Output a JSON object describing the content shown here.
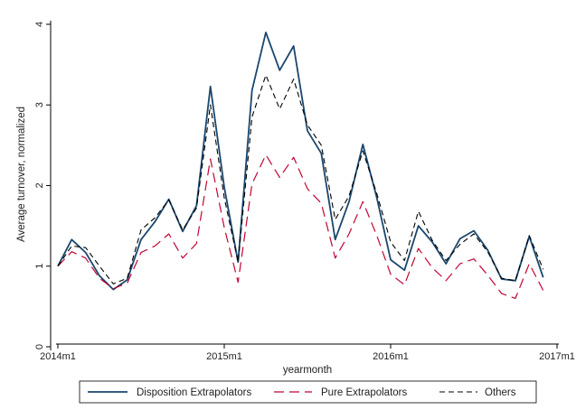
{
  "chart_data": {
    "type": "line",
    "title": "",
    "xlabel": "yearmonth",
    "ylabel": "Average turnover, normalized",
    "x_ticks": [
      "2014m1",
      "2015m1",
      "2016m1",
      "2017m1"
    ],
    "x_tick_index": [
      0,
      12,
      24,
      36
    ],
    "y_ticks": [
      0,
      1,
      2,
      3,
      4
    ],
    "ylim": [
      0,
      4.1
    ],
    "xlim": [
      0,
      36
    ],
    "grid": false,
    "legend_position": "bottom",
    "x": [
      "2014m1",
      "2014m2",
      "2014m3",
      "2014m4",
      "2014m5",
      "2014m6",
      "2014m7",
      "2014m8",
      "2014m9",
      "2014m10",
      "2014m11",
      "2014m12",
      "2015m1",
      "2015m2",
      "2015m3",
      "2015m4",
      "2015m5",
      "2015m6",
      "2015m7",
      "2015m8",
      "2015m9",
      "2015m10",
      "2015m11",
      "2015m12",
      "2016m1",
      "2016m2",
      "2016m3",
      "2016m4",
      "2016m5",
      "2016m6",
      "2016m7",
      "2016m8",
      "2016m9",
      "2016m10",
      "2016m11",
      "2016m12"
    ],
    "series": [
      {
        "name": "Disposition Extrapolators",
        "color": "#1a476f",
        "dash": "solid",
        "values": [
          1.0,
          1.33,
          1.17,
          0.88,
          0.71,
          0.83,
          1.33,
          1.55,
          1.83,
          1.43,
          1.75,
          3.23,
          1.98,
          1.05,
          3.18,
          3.9,
          3.43,
          3.73,
          2.68,
          2.4,
          1.33,
          1.8,
          2.51,
          1.85,
          1.08,
          0.95,
          1.5,
          1.3,
          1.03,
          1.34,
          1.44,
          1.2,
          0.84,
          0.82,
          1.37,
          0.86
        ]
      },
      {
        "name": "Pure Extrapolators",
        "color": "#c10534",
        "dash": "long",
        "values": [
          1.0,
          1.18,
          1.1,
          0.85,
          0.72,
          0.79,
          1.17,
          1.25,
          1.4,
          1.1,
          1.28,
          2.33,
          1.48,
          0.8,
          2.02,
          2.38,
          2.1,
          2.35,
          1.96,
          1.78,
          1.1,
          1.4,
          1.8,
          1.38,
          0.9,
          0.77,
          1.22,
          0.98,
          0.82,
          1.03,
          1.09,
          0.89,
          0.66,
          0.6,
          1.03,
          0.7
        ]
      },
      {
        "name": "Others",
        "color": "#000000",
        "dash": "short",
        "values": [
          1.0,
          1.25,
          1.23,
          1.0,
          0.78,
          0.85,
          1.45,
          1.6,
          1.82,
          1.45,
          1.72,
          3.0,
          1.85,
          1.05,
          2.85,
          3.37,
          2.95,
          3.32,
          2.75,
          2.5,
          1.58,
          1.87,
          2.43,
          1.9,
          1.3,
          1.07,
          1.68,
          1.32,
          1.07,
          1.27,
          1.4,
          1.18,
          0.85,
          0.82,
          1.38,
          0.96
        ]
      }
    ]
  }
}
